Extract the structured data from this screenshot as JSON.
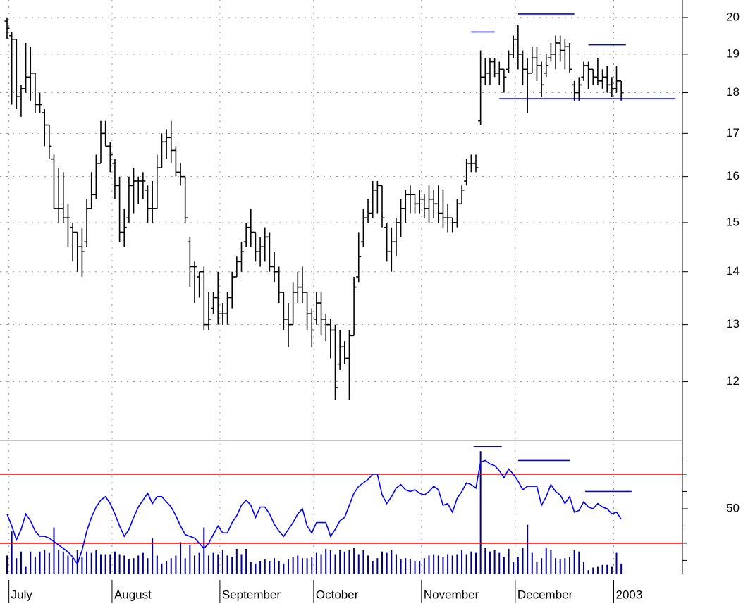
{
  "chart_data": [
    {
      "type": "ohlc",
      "categories": [
        null,
        "July",
        null,
        null,
        null,
        null,
        null,
        null,
        null,
        null,
        null,
        null,
        null,
        null,
        null,
        null,
        null,
        null,
        null,
        null,
        null,
        null,
        null,
        "August",
        null,
        null,
        null,
        null,
        null,
        null,
        null,
        null,
        null,
        null,
        null,
        null,
        null,
        null,
        null,
        null,
        null,
        null,
        null,
        null,
        null,
        null,
        "September",
        null,
        null,
        null,
        null,
        null,
        null,
        null,
        null,
        null,
        null,
        null,
        null,
        null,
        null,
        null,
        null,
        null,
        null,
        null,
        "October",
        null,
        null,
        null,
        null,
        null,
        null,
        null,
        null,
        null,
        null,
        null,
        null,
        null,
        null,
        null,
        null,
        null,
        null,
        null,
        null,
        null,
        null,
        "November",
        null,
        null,
        null,
        null,
        null,
        null,
        null,
        null,
        null,
        null,
        null,
        null,
        null,
        null,
        null,
        null,
        null,
        null,
        null,
        "December",
        null,
        null,
        null,
        null,
        null,
        null,
        null,
        null,
        null,
        null,
        null,
        null,
        null,
        null,
        null,
        null,
        null,
        null,
        null,
        null,
        "2003",
        null
      ],
      "open": [
        19.9,
        19.5,
        19.4,
        17.9,
        18.1,
        18.4,
        18.5,
        17.7,
        17.5,
        17.2,
        16.4,
        15.3,
        15.3,
        15.1,
        14.9,
        14.8,
        14.5,
        14.6,
        15.3,
        15.6,
        16.3,
        17.0,
        16.7,
        16.3,
        15.8,
        14.8,
        15.1,
        15.8,
        15.9,
        15.9,
        15.7,
        15.3,
        15.3,
        16.2,
        16.8,
        16.9,
        16.6,
        16.1,
        16.0,
        14.6,
        14.1,
        13.9,
        14.0,
        13.0,
        13.3,
        13.5,
        13.2,
        13.2,
        13.5,
        13.9,
        14.2,
        14.6,
        14.9,
        14.8,
        14.4,
        14.5,
        14.7,
        14.1,
        14.0,
        13.6,
        13.1,
        13.0,
        13.6,
        13.7,
        13.6,
        13.2,
        13.1,
        13.4,
        13.1,
        13.0,
        12.9,
        12.3,
        12.6,
        12.4,
        12.8,
        13.9,
        14.6,
        15.1,
        15.2,
        15.7,
        15.8,
        14.9,
        14.4,
        14.6,
        15.0,
        15.3,
        15.6,
        15.6,
        15.4,
        15.5,
        15.3,
        15.5,
        15.4,
        15.2,
        15.1,
        15.1,
        15.0,
        15.4,
        15.9,
        16.3,
        16.3,
        17.3,
        18.4,
        18.5,
        18.8,
        18.5,
        18.6,
        18.6,
        19.0,
        19.4,
        19.0,
        18.6,
        18.5,
        18.9,
        18.7,
        18.5,
        18.9,
        19.0,
        19.3,
        19.1,
        19.2,
        18.2,
        18.0,
        18.4,
        18.7,
        18.6,
        18.4,
        18.3,
        18.4,
        18.2,
        18.1,
        18.3
      ],
      "high": [
        20.0,
        19.6,
        19.4,
        18.2,
        19.3,
        19.2,
        18.5,
        18.0,
        17.6,
        17.2,
        16.5,
        16.2,
        16.1,
        15.4,
        15.0,
        14.8,
        14.9,
        15.5,
        16.1,
        16.5,
        17.3,
        17.3,
        16.8,
        16.4,
        16.0,
        15.3,
        16.0,
        16.2,
        16.0,
        16.1,
        15.8,
        15.9,
        16.5,
        17.0,
        17.1,
        17.3,
        16.7,
        16.3,
        16.0,
        14.7,
        14.2,
        14.0,
        14.1,
        13.6,
        13.6,
        14.0,
        13.4,
        13.6,
        14.0,
        14.3,
        14.6,
        15.0,
        15.3,
        14.8,
        14.7,
        14.9,
        14.8,
        14.4,
        14.1,
        13.6,
        13.4,
        13.8,
        14.0,
        14.1,
        13.6,
        13.3,
        13.6,
        13.6,
        13.2,
        13.1,
        13.0,
        12.9,
        12.7,
        12.9,
        13.9,
        14.8,
        15.3,
        15.5,
        15.9,
        15.9,
        15.8,
        15.0,
        14.9,
        15.1,
        15.5,
        15.7,
        15.8,
        15.6,
        15.7,
        15.6,
        15.8,
        15.7,
        15.8,
        15.7,
        15.4,
        15.1,
        15.5,
        15.8,
        16.4,
        16.5,
        16.5,
        19.1,
        18.9,
        18.9,
        18.9,
        18.8,
        18.6,
        19.1,
        19.5,
        19.8,
        19.1,
        18.9,
        19.2,
        19.2,
        18.8,
        19.0,
        19.3,
        19.5,
        19.5,
        19.4,
        19.3,
        18.3,
        18.4,
        18.8,
        18.8,
        18.6,
        18.9,
        18.6,
        18.7,
        18.4,
        18.7,
        18.3
      ],
      "low": [
        19.4,
        17.7,
        17.6,
        17.4,
        18.0,
        17.8,
        17.5,
        17.5,
        16.7,
        16.4,
        15.3,
        15.0,
        15.0,
        14.5,
        14.2,
        14.0,
        13.9,
        14.5,
        15.3,
        15.5,
        16.3,
        16.7,
        16.1,
        15.5,
        14.6,
        14.5,
        15.0,
        15.2,
        15.4,
        15.5,
        15.0,
        15.0,
        15.3,
        16.2,
        16.4,
        16.3,
        16.0,
        15.8,
        15.0,
        13.7,
        13.4,
        13.5,
        12.9,
        12.9,
        13.2,
        13.0,
        13.0,
        13.0,
        13.3,
        13.9,
        14.0,
        14.5,
        14.5,
        14.2,
        14.1,
        14.2,
        14.0,
        13.8,
        13.4,
        12.9,
        12.6,
        13.0,
        13.4,
        13.4,
        12.9,
        12.6,
        13.0,
        12.8,
        12.7,
        12.4,
        11.7,
        12.2,
        12.3,
        11.7,
        12.8,
        13.8,
        14.5,
        15.0,
        15.1,
        15.2,
        14.9,
        14.2,
        14.0,
        14.3,
        14.7,
        15.0,
        15.2,
        15.2,
        15.2,
        15.1,
        15.0,
        15.1,
        15.0,
        14.9,
        14.8,
        14.8,
        14.9,
        15.4,
        15.8,
        16.1,
        16.1,
        17.2,
        18.2,
        18.2,
        18.4,
        18.2,
        18.0,
        18.5,
        18.9,
        18.6,
        18.2,
        17.5,
        18.5,
        18.3,
        17.9,
        18.4,
        18.8,
        18.6,
        18.8,
        18.6,
        18.5,
        17.8,
        17.8,
        18.3,
        18.1,
        18.2,
        18.2,
        18.1,
        18.0,
        17.9,
        18.0,
        17.8
      ],
      "close": [
        19.7,
        19.4,
        17.9,
        18.1,
        18.4,
        18.5,
        17.7,
        17.7,
        17.2,
        16.7,
        15.3,
        15.3,
        15.1,
        15.1,
        14.8,
        14.5,
        14.4,
        15.3,
        15.6,
        16.3,
        17.0,
        16.7,
        16.5,
        15.8,
        14.8,
        14.9,
        15.8,
        15.9,
        15.9,
        15.9,
        15.3,
        15.3,
        16.2,
        16.8,
        16.9,
        16.6,
        16.1,
        16.0,
        15.1,
        14.1,
        14.1,
        14.0,
        13.0,
        13.1,
        13.5,
        13.2,
        13.2,
        13.5,
        13.9,
        14.2,
        14.4,
        14.9,
        14.8,
        14.4,
        14.5,
        14.7,
        14.1,
        14.0,
        13.6,
        13.1,
        13.0,
        13.6,
        13.7,
        13.6,
        13.2,
        12.9,
        13.4,
        13.1,
        13.0,
        12.9,
        11.9,
        12.6,
        12.4,
        12.8,
        13.7,
        14.3,
        15.1,
        15.2,
        15.7,
        15.8,
        15.1,
        14.4,
        14.6,
        15.0,
        15.3,
        15.6,
        15.6,
        15.4,
        15.5,
        15.3,
        15.5,
        15.4,
        15.2,
        15.1,
        15.1,
        15.0,
        15.4,
        15.7,
        16.3,
        16.3,
        16.2,
        18.4,
        18.5,
        18.8,
        18.5,
        18.6,
        18.4,
        19.0,
        19.4,
        19.0,
        18.6,
        18.5,
        18.9,
        18.7,
        18.2,
        18.7,
        19.0,
        19.3,
        19.1,
        19.2,
        18.6,
        18.0,
        18.2,
        18.7,
        18.6,
        18.4,
        18.3,
        18.4,
        18.2,
        18.1,
        18.3,
        18.0
      ],
      "color": "#000000",
      "ylim": [
        11.05,
        20.5
      ],
      "log_scale": true,
      "yticks": [
        12,
        13,
        14,
        15,
        16,
        17,
        18,
        19,
        20
      ],
      "grid": true,
      "lines": [
        {
          "y": 19.6,
          "from": 99,
          "to": 104,
          "color": "#0000ff"
        },
        {
          "y": 20.1,
          "from": 109,
          "to": 121,
          "color": "#0000ff"
        },
        {
          "y": 19.25,
          "from": 124,
          "to": 132,
          "color": "#0000ff"
        },
        {
          "y": 17.85,
          "from": 105,
          "to": 142.6,
          "color": "#0000ff"
        }
      ]
    },
    {
      "type": "line",
      "series": [
        {
          "color": "#0000ff",
          "values": [
            47,
            40,
            32,
            38,
            47,
            43,
            37,
            34,
            34,
            33,
            31,
            29,
            27,
            25,
            22,
            18,
            26,
            37,
            45,
            51,
            55,
            57,
            53,
            47,
            40,
            34,
            38,
            45,
            51,
            55,
            59,
            53,
            57,
            57,
            54,
            51,
            46,
            40,
            35,
            34,
            33,
            30,
            27,
            30,
            35,
            40,
            36,
            36,
            42,
            46,
            52,
            55,
            52,
            45,
            51,
            51,
            47,
            41,
            37,
            34,
            38,
            42,
            47,
            50,
            40,
            36,
            42,
            42,
            42,
            34,
            38,
            43,
            45,
            52,
            59,
            63,
            65,
            67,
            70,
            70,
            58,
            53,
            57,
            62,
            64,
            61,
            60,
            61,
            59,
            58,
            60,
            63,
            61,
            52,
            53,
            48,
            56,
            60,
            65,
            64,
            62,
            77,
            78,
            76,
            75,
            72,
            68,
            73,
            70,
            66,
            61,
            63,
            63,
            63,
            52,
            57,
            64,
            60,
            58,
            53,
            57,
            48,
            49,
            54,
            51,
            50,
            53,
            51,
            50,
            47,
            48,
            44
          ]
        },
        {
          "color": "#00008b",
          "axis": "y2",
          "values": [
            14,
            32,
            12,
            17,
            6,
            17,
            13,
            17,
            18,
            16,
            35,
            18,
            17,
            14,
            12,
            18,
            13,
            17,
            16,
            18,
            15,
            15,
            15,
            17,
            15,
            14,
            11,
            12,
            14,
            16,
            12,
            27,
            14,
            8,
            10,
            12,
            14,
            24,
            12,
            22,
            14,
            16,
            35,
            14,
            16,
            15,
            18,
            14,
            13,
            19,
            15,
            19,
            9,
            8,
            10,
            11,
            10,
            12,
            10,
            8,
            11,
            13,
            14,
            12,
            12,
            13,
            16,
            15,
            19,
            18,
            15,
            18,
            17,
            18,
            20,
            15,
            18,
            14,
            10,
            12,
            17,
            16,
            18,
            15,
            11,
            12,
            11,
            10,
            10,
            12,
            14,
            15,
            14,
            13,
            15,
            14,
            15,
            18,
            15,
            17,
            16,
            92,
            20,
            17,
            18,
            16,
            13,
            19,
            9,
            13,
            20,
            37,
            16,
            9,
            12,
            20,
            18,
            12,
            11,
            12,
            13,
            18,
            17,
            9,
            3,
            5,
            6,
            7,
            7,
            6,
            16,
            8
          ]
        }
      ],
      "ylim": [
        12,
        89.6
      ],
      "yticks": [
        50
      ],
      "yminor": [
        20,
        30,
        40,
        60,
        70,
        80
      ],
      "y2lim": [
        0,
        100
      ],
      "hlines": [
        {
          "y": 30,
          "color": "#ff0000"
        },
        {
          "y": 70,
          "color": "#ff0000"
        }
      ],
      "lines": [
        {
          "y": 86,
          "from": 99.5,
          "to": 105.5,
          "color": "#0000ff"
        },
        {
          "y": 78,
          "from": 109,
          "to": 120,
          "color": "#0000ff"
        },
        {
          "y": 60,
          "from": 123.3,
          "to": 133.2,
          "color": "#0000ff"
        }
      ]
    }
  ]
}
